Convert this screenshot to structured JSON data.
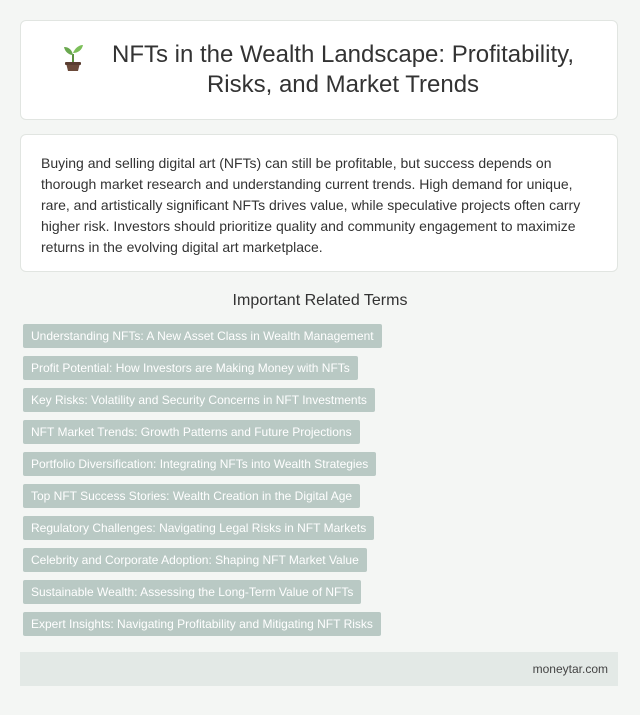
{
  "header": {
    "icon": "sprout-icon",
    "title": "NFTs in the Wealth Landscape: Profitability, Risks, and Market Trends"
  },
  "intro": {
    "text": "Buying and selling digital art (NFTs) can still be profitable, but success depends on thorough market research and understanding current trends. High demand for unique, rare, and artistically significant NFTs drives value, while speculative projects often carry higher risk. Investors should prioritize quality and community engagement to maximize returns in the evolving digital art marketplace."
  },
  "related": {
    "heading": "Important Related Terms",
    "terms": [
      "Understanding NFTs: A New Asset Class in Wealth Management",
      "Profit Potential: How Investors are Making Money with NFTs",
      "Key Risks: Volatility and Security Concerns in NFT Investments",
      "NFT Market Trends: Growth Patterns and Future Projections",
      "Portfolio Diversification: Integrating NFTs into Wealth Strategies",
      "Top NFT Success Stories: Wealth Creation in the Digital Age",
      "Regulatory Challenges: Navigating Legal Risks in NFT Markets",
      "Celebrity and Corporate Adoption: Shaping NFT Market Value",
      "Sustainable Wealth: Assessing the Long-Term Value of NFTs",
      "Expert Insights: Navigating Profitability and Mitigating NFT Risks"
    ]
  },
  "footer": {
    "site": "moneytar.com"
  },
  "colors": {
    "background": "#f4f6f4",
    "tag_background": "#b9c9c4",
    "footer_background": "#e3e9e6",
    "sprout_leaf": "#6aa84f",
    "sprout_pot": "#6b4a3a"
  }
}
